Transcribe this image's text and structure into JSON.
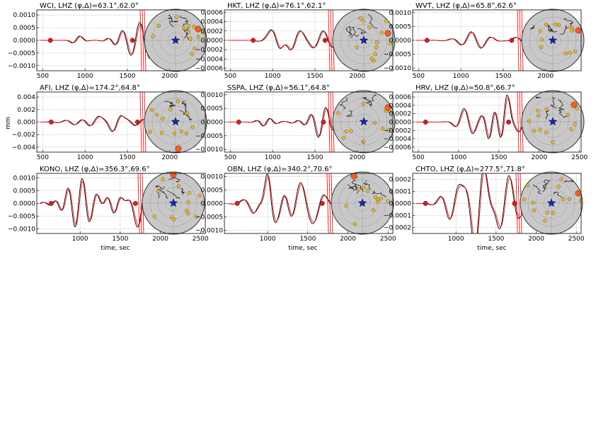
{
  "figure": {
    "y_unit_label": "mm",
    "x_axis_label": "time, sec",
    "colors": {
      "observed": "#000000",
      "synthetic": "#e8141b",
      "marker": "#d81e1e",
      "globe_fill": "#c8c8c8",
      "globe_edge": "#333333",
      "station_dot": "#f2b81c",
      "highlight_station": "#ff5a1a",
      "epicenter_star": "#1526b8",
      "grid": "#888888"
    }
  },
  "chart_data": [
    {
      "type": "line",
      "title": "WCI, LHZ (φ,Δ)=63.1°,62.0°",
      "x_ticks": [
        500,
        1000,
        1500,
        2000
      ],
      "xlim": [
        430,
        2420
      ],
      "y_ticks": [
        0.001,
        0.0005,
        0.0,
        -0.0005,
        -0.001
      ],
      "y_tick_labels": [
        "0.0010",
        "0.0005",
        "0.0000",
        "−0.0005",
        "−0.0010"
      ],
      "ylim": [
        -0.0012,
        0.0012
      ],
      "window_markers": [
        590,
        1560
      ],
      "series": [],
      "amp": 0.00038,
      "seed": 1
    },
    {
      "type": "line",
      "title": "HKT, LHZ (φ,Δ)=76.1°,62.1°",
      "x_ticks": [
        500,
        1000,
        1500,
        2000
      ],
      "xlim": [
        430,
        2420
      ],
      "y_ticks": [
        0.0006,
        0.0004,
        0.0002,
        0.0,
        -0.0002,
        -0.0004,
        -0.0006
      ],
      "y_tick_labels": [
        "0.0006",
        "0.0004",
        "0.0002",
        "0.0000",
        "−0.0002",
        "−0.0004",
        "−0.0006"
      ],
      "ylim": [
        -0.00065,
        0.00065
      ],
      "window_markers": [
        770,
        1620
      ],
      "series": [],
      "amp": 0.00038,
      "seed": 2
    },
    {
      "type": "line",
      "title": "WVT, LHZ (φ,Δ)=65.8°,62.6°",
      "x_ticks": [
        500,
        1000,
        1500,
        2000
      ],
      "xlim": [
        430,
        2420
      ],
      "y_ticks": [
        0.001,
        0.0005,
        0.0,
        -0.0005,
        -0.001
      ],
      "y_tick_labels": [
        "0.0010",
        "0.0005",
        "0.0000",
        "−0.0005",
        "−0.0010"
      ],
      "ylim": [
        -0.0011,
        0.0011
      ],
      "window_markers": [
        600,
        1600
      ],
      "series": [],
      "amp": 0.0002,
      "seed": 3
    },
    {
      "type": "line",
      "title": "AFI, LHZ (φ,Δ)=174.2°,64.8°",
      "x_ticks": [
        500,
        1000,
        1500,
        2000
      ],
      "xlim": [
        430,
        2420
      ],
      "y_ticks": [
        0.004,
        0.002,
        0.0,
        -0.002,
        -0.004
      ],
      "y_tick_labels": [
        "0.004",
        "0.002",
        "0.000",
        "−0.002",
        "−0.004"
      ],
      "ylim": [
        -0.0048,
        0.0048
      ],
      "window_markers": [
        600,
        1620
      ],
      "series": [],
      "amp": 0.001,
      "seed": 4
    },
    {
      "type": "line",
      "title": "SSPA, LHZ (φ,Δ)=56.1°,64.8°",
      "x_ticks": [
        500,
        1000,
        1500,
        2000
      ],
      "xlim": [
        430,
        2420
      ],
      "y_ticks": [
        0.001,
        0.0005,
        0.0,
        -0.0005,
        -0.001
      ],
      "y_tick_labels": [
        "0.0010",
        "0.0005",
        "0.0000",
        "−0.0005",
        "−0.0010"
      ],
      "ylim": [
        -0.0011,
        0.0011
      ],
      "window_markers": [
        600,
        1600
      ],
      "series": [],
      "amp": 0.0004,
      "seed": 5
    },
    {
      "type": "line",
      "title": "HRV, LHZ (φ,Δ)=50.8°,66.7°",
      "x_ticks": [
        500,
        1000,
        1500,
        2000,
        2500
      ],
      "xlim": [
        430,
        2520
      ],
      "y_ticks": [
        0.0006,
        0.0004,
        0.0002,
        0.0,
        -0.0002,
        -0.0004,
        -0.0006
      ],
      "y_tick_labels": [
        "0.0006",
        "0.0004",
        "0.0002",
        "0.0000",
        "−0.0002",
        "−0.0004",
        "−0.0006"
      ],
      "ylim": [
        -0.00072,
        0.00072
      ],
      "window_markers": [
        590,
        1620
      ],
      "series": [],
      "amp": 0.00045,
      "seed": 6
    },
    {
      "type": "line",
      "title": "KONO, LHZ (φ,Δ)=356.3°,69.6°",
      "x_ticks": [
        1000,
        1500,
        2000,
        2500
      ],
      "xlim": [
        460,
        2560
      ],
      "y_ticks": [
        0.001,
        0.0005,
        0.0,
        -0.0005,
        -0.001
      ],
      "y_tick_labels": [
        "0.0010",
        "0.0005",
        "0.0000",
        "−0.0005",
        "−0.0010"
      ],
      "ylim": [
        -0.00118,
        0.00118
      ],
      "window_markers": [
        640,
        1690
      ],
      "series": [],
      "amp": 0.00095,
      "seed": 7
    },
    {
      "type": "line",
      "title": "OBN, LHZ (φ,Δ)=340.2°,70.6°",
      "x_ticks": [
        1000,
        1500,
        2000,
        2500
      ],
      "xlim": [
        460,
        2560
      ],
      "y_ticks": [
        0.001,
        0.0005,
        0.0,
        -0.0005,
        -0.001
      ],
      "y_tick_labels": [
        "0.0010",
        "0.0005",
        "0.0000",
        "−0.0005",
        "−0.0010"
      ],
      "ylim": [
        -0.00112,
        0.00112
      ],
      "window_markers": [
        620,
        1680
      ],
      "series": [],
      "amp": 0.0009,
      "seed": 8
    },
    {
      "type": "line",
      "title": "CHTO, LHZ (φ,Δ)=277.5°,71.8°",
      "x_ticks": [
        1000,
        1500,
        2000,
        2500
      ],
      "xlim": [
        460,
        2560
      ],
      "y_ticks": [
        0.0002,
        0.0001,
        0.0,
        -0.0001,
        -0.0002
      ],
      "y_tick_labels": [
        "0.0002",
        "0.0001",
        "0.0000",
        "−0.0001",
        "−0.0002"
      ],
      "ylim": [
        -0.00025,
        0.00025
      ],
      "window_markers": [
        620,
        1730
      ],
      "series": [],
      "amp": 0.0002,
      "seed": 9
    }
  ]
}
